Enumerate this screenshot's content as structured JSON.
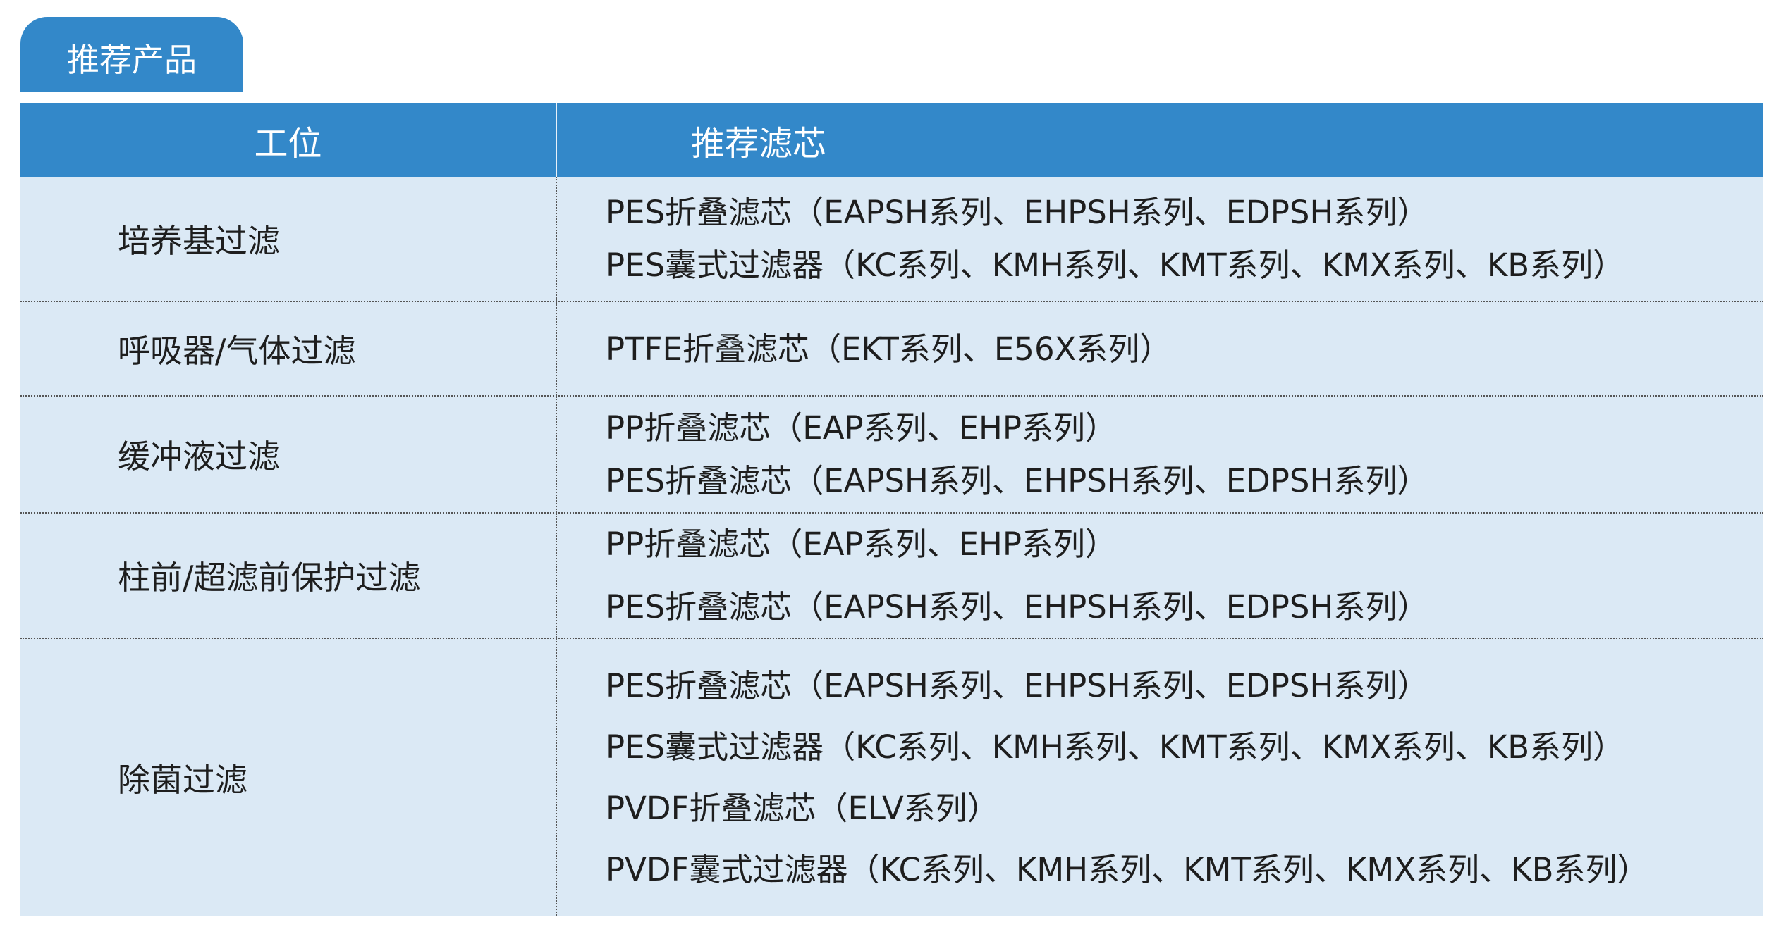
{
  "tab_title": "推荐产品",
  "header": {
    "col1": "工位",
    "col2": "推荐滤芯"
  },
  "colors": {
    "accent": "#3388c9",
    "row_bg": "#dbe9f5"
  },
  "rows": [
    {
      "station": "培养基过滤",
      "filters": [
        "PES折叠滤芯（EAPSH系列、EHPSH系列、EDPSH系列）",
        "PES囊式过滤器（KC系列、KMH系列、KMT系列、KMX系列、KB系列）"
      ]
    },
    {
      "station": "呼吸器/气体过滤",
      "filters": [
        "PTFE折叠滤芯（EKT系列、E56X系列）"
      ]
    },
    {
      "station": "缓冲液过滤",
      "filters": [
        "PP折叠滤芯（EAP系列、EHP系列）",
        "PES折叠滤芯（EAPSH系列、EHPSH系列、EDPSH系列）"
      ]
    },
    {
      "station": "柱前/超滤前保护过滤",
      "filters": [
        "PP折叠滤芯（EAP系列、EHP系列）",
        "PES折叠滤芯（EAPSH系列、EHPSH系列、EDPSH系列）"
      ]
    },
    {
      "station": "除菌过滤",
      "filters": [
        "PES折叠滤芯（EAPSH系列、EHPSH系列、EDPSH系列）",
        "PES囊式过滤器（KC系列、KMH系列、KMT系列、KMX系列、KB系列）",
        "PVDF折叠滤芯（ELV系列）",
        "PVDF囊式过滤器（KC系列、KMH系列、KMT系列、KMX系列、KB系列）"
      ]
    }
  ]
}
